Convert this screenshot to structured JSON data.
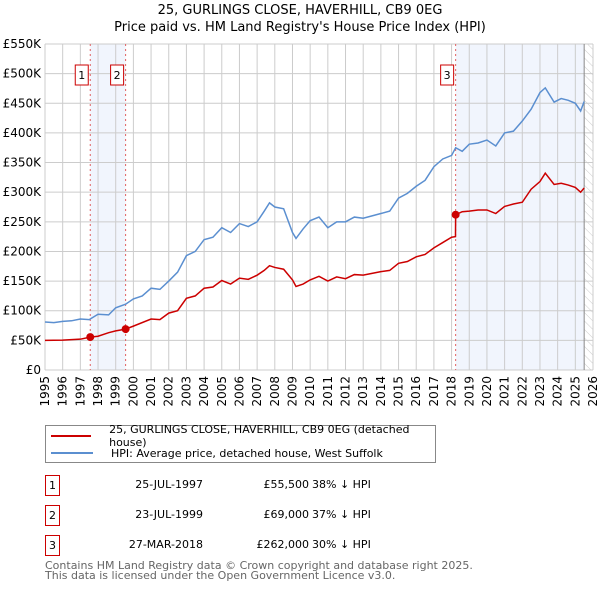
{
  "chart_data": {
    "type": "line",
    "title": "25, GURLINGS CLOSE, HAVERHILL, CB9 0EG",
    "subtitle": "Price paid vs. HM Land Registry's House Price Index (HPI)",
    "xlim": [
      1995,
      2026
    ],
    "ylim": [
      0,
      550000
    ],
    "x_ticks": [
      "1995",
      "1996",
      "1997",
      "1998",
      "1999",
      "2000",
      "2001",
      "2002",
      "2003",
      "2004",
      "2005",
      "2006",
      "2007",
      "2008",
      "2009",
      "2010",
      "2011",
      "2012",
      "2013",
      "2014",
      "2015",
      "2016",
      "2017",
      "2018",
      "2019",
      "2020",
      "2021",
      "2022",
      "2023",
      "2024",
      "2025",
      "2026"
    ],
    "y_ticks": [
      {
        "v": 0,
        "label": "£0"
      },
      {
        "v": 50000,
        "label": "£50K"
      },
      {
        "v": 100000,
        "label": "£100K"
      },
      {
        "v": 150000,
        "label": "£150K"
      },
      {
        "v": 200000,
        "label": "£200K"
      },
      {
        "v": 250000,
        "label": "£250K"
      },
      {
        "v": 300000,
        "label": "£300K"
      },
      {
        "v": 350000,
        "label": "£350K"
      },
      {
        "v": 400000,
        "label": "£400K"
      },
      {
        "v": 450000,
        "label": "£450K"
      },
      {
        "v": 500000,
        "label": "£500K"
      },
      {
        "v": 550000,
        "label": "£550K"
      }
    ],
    "grid": true,
    "series": [
      {
        "name": "25, GURLINGS CLOSE, HAVERHILL, CB9 0EG (detached house)",
        "color": "#cc0000",
        "x": [
          1995,
          1996,
          1997,
          1997.56,
          1998,
          1998.6,
          1999,
          1999.56,
          2000,
          2001,
          2001.5,
          2002,
          2002.5,
          2003,
          2003.5,
          2004,
          2004.5,
          2005,
          2005.5,
          2006,
          2006.5,
          2007,
          2007.4,
          2007.7,
          2008,
          2008.5,
          2009,
          2009.2,
          2009.6,
          2010,
          2010.5,
          2011,
          2011.5,
          2012,
          2012.5,
          2013,
          2013.5,
          2014,
          2014.5,
          2015,
          2015.5,
          2016,
          2016.5,
          2017,
          2017.5,
          2018,
          2018.22,
          2018.23,
          2018.6,
          2019,
          2019.5,
          2020,
          2020.5,
          2021,
          2021.5,
          2022,
          2022.5,
          2023,
          2023.3,
          2023.8,
          2024.2,
          2024.6,
          2025,
          2025.3,
          2025.5
        ],
        "y": [
          50000,
          50500,
          52000,
          55500,
          57000,
          63000,
          66000,
          69000,
          74000,
          86000,
          85000,
          96000,
          100000,
          121000,
          125000,
          138000,
          140000,
          151000,
          145000,
          155000,
          153000,
          160000,
          168000,
          176000,
          173000,
          170000,
          152000,
          141000,
          145000,
          152000,
          158000,
          150000,
          157000,
          154000,
          161000,
          160000,
          163000,
          166000,
          168000,
          180000,
          183000,
          191000,
          195000,
          206000,
          215000,
          224000,
          225000,
          262000,
          267000,
          268000,
          270000,
          270000,
          264000,
          276000,
          280000,
          283000,
          305000,
          318000,
          332000,
          313000,
          315000,
          312000,
          308000,
          300000,
          307000
        ]
      },
      {
        "name": "HPI: Average price, detached house, West Suffolk",
        "color": "#5b8fd0",
        "x": [
          1995,
          1995.5,
          1996,
          1996.5,
          1997,
          1997.5,
          1998,
          1998.6,
          1999,
          1999.56,
          2000,
          2000.5,
          2001,
          2001.5,
          2002,
          2002.5,
          2003,
          2003.5,
          2004,
          2004.5,
          2005,
          2005.5,
          2006,
          2006.5,
          2007,
          2007.4,
          2007.7,
          2008,
          2008.5,
          2009,
          2009.2,
          2009.6,
          2010,
          2010.5,
          2011,
          2011.5,
          2012,
          2012.5,
          2013,
          2013.5,
          2014,
          2014.5,
          2015,
          2015.5,
          2016,
          2016.5,
          2017,
          2017.5,
          2018,
          2018.23,
          2018.6,
          2019,
          2019.5,
          2020,
          2020.5,
          2021,
          2021.5,
          2022,
          2022.5,
          2023,
          2023.3,
          2023.8,
          2024.2,
          2024.6,
          2025,
          2025.3,
          2025.5
        ],
        "y": [
          81000,
          80000,
          82000,
          83000,
          86000,
          85000,
          94000,
          93000,
          105000,
          111000,
          120000,
          125000,
          138000,
          136000,
          150000,
          165000,
          193000,
          200000,
          220000,
          224000,
          240000,
          232000,
          247000,
          242000,
          250000,
          268000,
          282000,
          275000,
          272000,
          232000,
          222000,
          238000,
          252000,
          258000,
          240000,
          250000,
          250000,
          258000,
          256000,
          260000,
          264000,
          268000,
          290000,
          298000,
          310000,
          320000,
          343000,
          356000,
          362000,
          375000,
          369000,
          381000,
          383000,
          388000,
          378000,
          400000,
          403000,
          420000,
          440000,
          468000,
          476000,
          452000,
          458000,
          455000,
          450000,
          437000,
          453000
        ]
      }
    ],
    "sales": [
      {
        "num": "1",
        "x": 1997.56,
        "y": 55500,
        "date": "25-JUL-1997",
        "price": "£55,500",
        "hpi": "38% ↓ HPI"
      },
      {
        "num": "2",
        "x": 1999.56,
        "y": 69000,
        "date": "23-JUL-1999",
        "price": "£69,000",
        "hpi": "37% ↓ HPI"
      },
      {
        "num": "3",
        "x": 2018.23,
        "y": 262000,
        "date": "27-MAR-2018",
        "price": "£262,000",
        "hpi": "30% ↓ HPI"
      }
    ],
    "legend_placement": "below"
  },
  "footer": {
    "line1": "Contains HM Land Registry data © Crown copyright and database right 2025.",
    "line2": "This data is licensed under the Open Government Licence v3.0."
  }
}
